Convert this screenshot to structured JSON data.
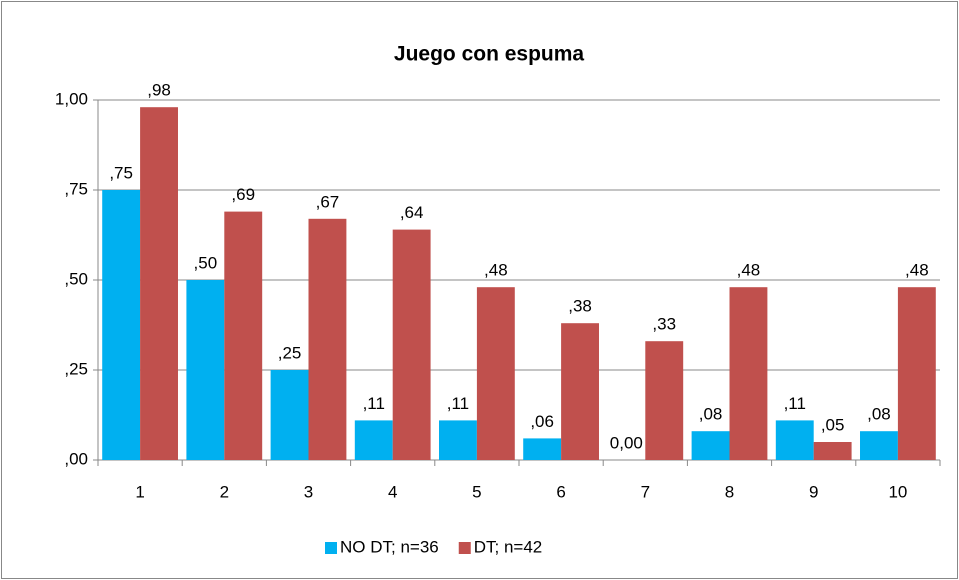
{
  "chart_data": {
    "type": "bar",
    "title": "Juego con espuma",
    "categories": [
      "1",
      "2",
      "3",
      "4",
      "5",
      "6",
      "7",
      "8",
      "9",
      "10"
    ],
    "series": [
      {
        "name": "NO DT; n=36",
        "color": "#00b0f0",
        "values": [
          0.75,
          0.5,
          0.25,
          0.11,
          0.11,
          0.06,
          0,
          0.08,
          0.11,
          0.08
        ],
        "value_labels": [
          ",75",
          ",50",
          ",25",
          ",11",
          ",11",
          ",06",
          "0,00",
          ",08",
          ",11",
          ",08"
        ]
      },
      {
        "name": "DT; n=42",
        "color": "#c0504d",
        "values": [
          0.98,
          0.69,
          0.67,
          0.64,
          0.48,
          0.38,
          0.33,
          0.48,
          0.05,
          0.48
        ],
        "value_labels": [
          ",98",
          ",69",
          ",67",
          ",64",
          ",48",
          ",38",
          ",33",
          ",48",
          ",05",
          ",48"
        ]
      }
    ],
    "ylim": [
      0,
      1
    ],
    "yticks": [
      {
        "value": 0,
        "label": ",00"
      },
      {
        "value": 0.25,
        "label": ",25"
      },
      {
        "value": 0.5,
        "label": ",50"
      },
      {
        "value": 0.75,
        "label": ",75"
      },
      {
        "value": 1,
        "label": "1,00"
      }
    ],
    "grid": true,
    "legend": "bottom"
  }
}
